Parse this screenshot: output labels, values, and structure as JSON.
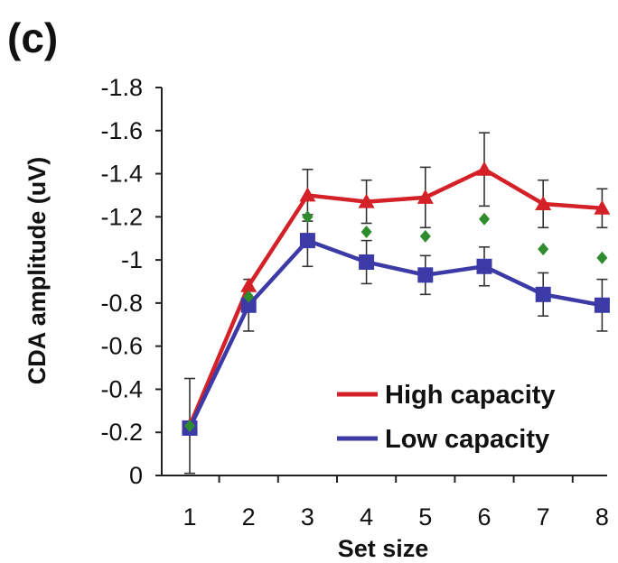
{
  "panel_label": "(c)",
  "colors": {
    "high": "#d42127",
    "low": "#3b3aa7",
    "average": "#2e8b2e",
    "axis": "#222222"
  },
  "chart_data": {
    "type": "line",
    "x": [
      1,
      2,
      3,
      4,
      5,
      6,
      7,
      8
    ],
    "xlabel": "Set size",
    "ylabel": "CDA amplitude (uV)",
    "ylim": [
      0,
      -1.8
    ],
    "y_inverted": true,
    "y_ticks": [
      0,
      -0.2,
      -0.4,
      -0.6,
      -0.8,
      -1,
      -1.2,
      -1.4,
      -1.6,
      -1.8
    ],
    "y_tick_labels": [
      "0",
      "-0.2",
      "-0.4",
      "-0.6",
      "-0.8",
      "-1",
      "-1.2",
      "-1.4",
      "-1.6",
      "-1.8"
    ],
    "x_tick_labels": [
      "1",
      "2",
      "3",
      "4",
      "5",
      "6",
      "7",
      "8"
    ],
    "grid": false,
    "legend_position": "bottom-right",
    "series": [
      {
        "name": "High capacity",
        "marker": "triangle",
        "color": "#d42127",
        "values": [
          -0.23,
          -0.88,
          -1.3,
          -1.27,
          -1.29,
          -1.42,
          -1.26,
          -1.24
        ],
        "error": [
          0.0,
          0.0,
          0.12,
          0.1,
          0.14,
          0.17,
          0.11,
          0.09
        ]
      },
      {
        "name": "Low capacity",
        "marker": "square",
        "color": "#3b3aa7",
        "values": [
          -0.22,
          -0.79,
          -1.09,
          -0.99,
          -0.93,
          -0.97,
          -0.84,
          -0.79
        ],
        "error": [
          0.23,
          0.12,
          0.12,
          0.1,
          0.09,
          0.09,
          0.1,
          0.12
        ]
      },
      {
        "marker": "diamond",
        "color": "#2e8b2e",
        "line": false,
        "values": [
          -0.23,
          -0.83,
          -1.2,
          -1.13,
          -1.11,
          -1.19,
          -1.05,
          -1.01
        ]
      }
    ]
  }
}
